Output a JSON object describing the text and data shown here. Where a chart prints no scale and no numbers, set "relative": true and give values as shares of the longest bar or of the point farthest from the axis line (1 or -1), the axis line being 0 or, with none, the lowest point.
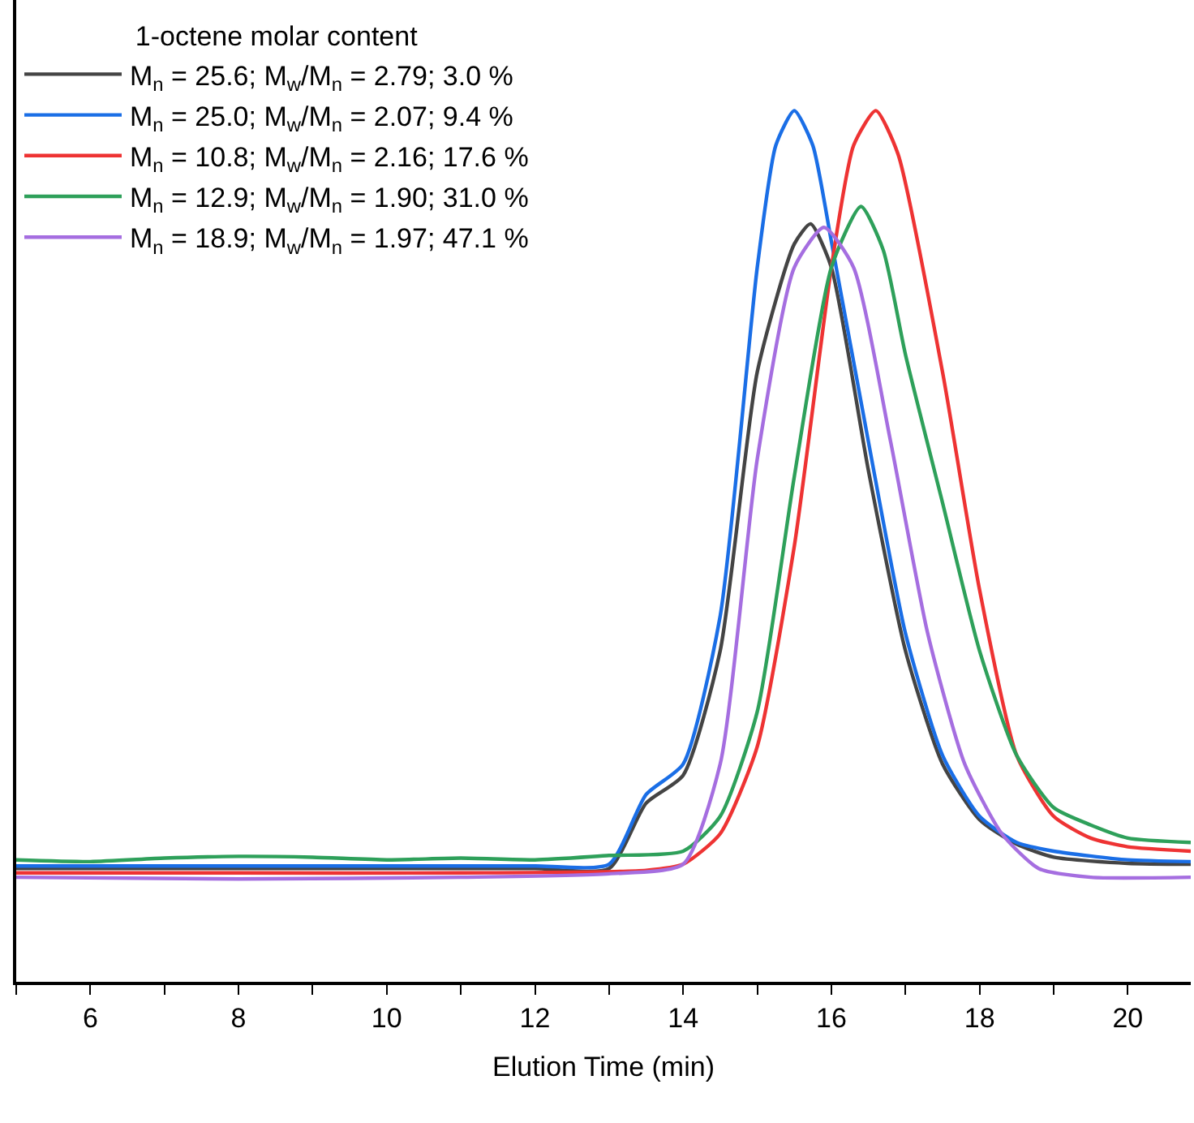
{
  "chart_data": {
    "type": "line",
    "relative": true,
    "xlabel": "Elution Time (min)",
    "legend_title": "1-octene molar content",
    "legend": "top left",
    "marker": "none",
    "line_style": "solid",
    "xlim": [
      5,
      20.85
    ],
    "xticks": [
      {
        "value": 5,
        "label": null
      },
      6,
      {
        "value": 7,
        "label": null
      },
      8,
      {
        "value": 9,
        "label": null
      },
      10,
      {
        "value": 11,
        "label": null
      },
      12,
      {
        "value": 13,
        "label": null
      },
      14,
      {
        "value": 15,
        "label": null
      },
      16,
      {
        "value": 17,
        "label": null
      },
      18,
      {
        "value": 19,
        "label": null
      },
      20
    ],
    "series": [
      {
        "name": "M$_{n}$ = 25.6; M$_{w}$/M$_{n}$ = 2.79; 3.0 %",
        "color": "#444444",
        "x": [
          5,
          8,
          11,
          12,
          13,
          13.5,
          14,
          14.5,
          15,
          15.5,
          15.72,
          16,
          16.5,
          17,
          17.5,
          18,
          18.5,
          19,
          20,
          20.85
        ],
        "values": [
          0.13,
          0.13,
          0.13,
          0.13,
          0.13,
          0.205,
          0.237,
          0.38,
          0.7,
          0.847,
          0.87,
          0.82,
          0.587,
          0.38,
          0.25,
          0.186,
          0.158,
          0.143,
          0.136,
          0.135
        ]
      },
      {
        "name": "M$_{n}$ = 25.0; M$_{w}$/M$_{n}$ = 2.07; 9.4 %",
        "color": "#1a6ee6",
        "x": [
          5,
          8,
          11,
          12,
          13,
          13.5,
          14,
          14.5,
          15,
          15.25,
          15.5,
          15.75,
          16,
          16.5,
          17,
          17.5,
          18,
          18.5,
          19,
          20,
          20.85
        ],
        "values": [
          0.133,
          0.133,
          0.133,
          0.133,
          0.135,
          0.215,
          0.25,
          0.42,
          0.82,
          0.96,
          1.0,
          0.96,
          0.85,
          0.62,
          0.4,
          0.26,
          0.19,
          0.16,
          0.15,
          0.14,
          0.138
        ]
      },
      {
        "name": "M$_{n}$ = 10.8; M$_{w}$/M$_{n}$ = 2.16; 17.6 %",
        "color": "#ee3333",
        "x": [
          5,
          8,
          11,
          13.5,
          14,
          14.5,
          15,
          15.5,
          16,
          16.3,
          16.6,
          16.9,
          17.5,
          18,
          18.5,
          19,
          19.5,
          20,
          20.85
        ],
        "values": [
          0.125,
          0.125,
          0.125,
          0.128,
          0.135,
          0.17,
          0.27,
          0.5,
          0.82,
          0.96,
          1.0,
          0.95,
          0.7,
          0.45,
          0.26,
          0.19,
          0.165,
          0.155,
          0.15
        ]
      },
      {
        "name": "M$_{n}$ = 12.9; M$_{w}$/M$_{n}$ = 1.90; 31.0 %",
        "color": "#2ea05a",
        "x": [
          5,
          6,
          7,
          8,
          9,
          10,
          11,
          12,
          13,
          14,
          14.5,
          15,
          15.5,
          16,
          16.4,
          16.7,
          17,
          17.5,
          18,
          18.5,
          19,
          19.5,
          20,
          20.85
        ],
        "values": [
          0.14,
          0.138,
          0.142,
          0.144,
          0.143,
          0.14,
          0.142,
          0.14,
          0.145,
          0.15,
          0.19,
          0.31,
          0.58,
          0.82,
          0.89,
          0.84,
          0.72,
          0.55,
          0.38,
          0.26,
          0.2,
          0.18,
          0.165,
          0.16
        ]
      },
      {
        "name": "M$_{n}$ = 18.9; M$_{w}$/M$_{n}$ = 1.97; 47.1 %",
        "color": "#a56ee0",
        "x": [
          5,
          8,
          11,
          13,
          14,
          14.5,
          15,
          15.5,
          15.9,
          16.3,
          16.8,
          17.3,
          17.8,
          18.3,
          18.8,
          19.5,
          20.85
        ],
        "values": [
          0.12,
          0.118,
          0.12,
          0.124,
          0.135,
          0.25,
          0.6,
          0.82,
          0.866,
          0.82,
          0.62,
          0.4,
          0.25,
          0.17,
          0.13,
          0.12,
          0.12
        ]
      }
    ]
  }
}
